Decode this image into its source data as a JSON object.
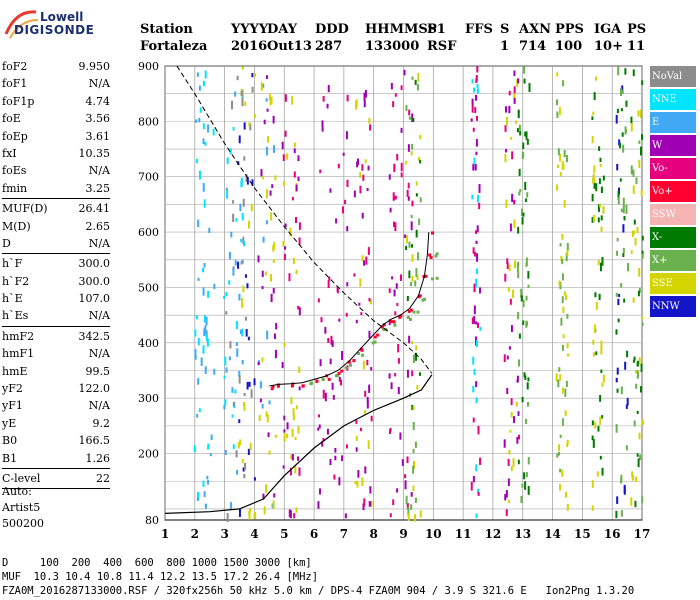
{
  "logo": {
    "line1": "Lowell",
    "line2": "DIGISONDE"
  },
  "header": {
    "row1": [
      "Station",
      "YYYY",
      "DAY",
      "DDD",
      "HHMMSS",
      "P1",
      "FFS",
      "S",
      "AXN",
      "PPS",
      "IGA",
      "PS"
    ],
    "row2": [
      "Fortaleza",
      "2016",
      "Out13",
      "287",
      "133000",
      "RSF",
      "",
      "1",
      "714",
      "100",
      "10+",
      "11"
    ]
  },
  "params": [
    {
      "label": "foF2",
      "value": "9.950"
    },
    {
      "label": "foF1",
      "value": "N/A"
    },
    {
      "label": "foF1p",
      "value": "4.74"
    },
    {
      "label": "foE",
      "value": "3.56"
    },
    {
      "label": "foEp",
      "value": "3.61"
    },
    {
      "label": "fxI",
      "value": "10.35"
    },
    {
      "label": "foEs",
      "value": "N/A"
    },
    {
      "label": "fmin",
      "value": "3.25"
    },
    {
      "sep": true
    },
    {
      "label": "MUF(D)",
      "value": "26.41"
    },
    {
      "label": "M(D)",
      "value": "2.65"
    },
    {
      "label": "D",
      "value": "N/A"
    },
    {
      "sep": true
    },
    {
      "label": "h`F",
      "value": "300.0"
    },
    {
      "label": "h`F2",
      "value": "300.0"
    },
    {
      "label": "h`E",
      "value": "107.0"
    },
    {
      "label": "h`Es",
      "value": "N/A"
    },
    {
      "sep": true
    },
    {
      "label": "hmF2",
      "value": "342.5"
    },
    {
      "label": "hmF1",
      "value": "N/A"
    },
    {
      "label": "hmE",
      "value": "99.5"
    },
    {
      "label": "yF2",
      "value": "122.0"
    },
    {
      "label": "yF1",
      "value": "N/A"
    },
    {
      "label": "yE",
      "value": "9.2"
    },
    {
      "label": "B0",
      "value": "166.5"
    },
    {
      "label": "B1",
      "value": "1.26"
    },
    {
      "sep": true
    },
    {
      "label": "C-level",
      "value": "22"
    },
    {
      "sep": true
    }
  ],
  "auto": {
    "line1": "Auto:",
    "line2": "Artist5",
    "line3": "500200"
  },
  "legend": [
    {
      "label": "NoVal",
      "color": "#8c8c8c"
    },
    {
      "label": "NNE",
      "color": "#00e5ff"
    },
    {
      "label": "E",
      "color": "#3fa9f5"
    },
    {
      "label": "W",
      "color": "#a000b4"
    },
    {
      "label": "Vo-",
      "color": "#e6007e"
    },
    {
      "label": "Vo+",
      "color": "#ff0030"
    },
    {
      "label": "SSW",
      "color": "#f5b4b4"
    },
    {
      "label": "X-",
      "color": "#007a00"
    },
    {
      "label": "X+",
      "color": "#6ab04c"
    },
    {
      "label": "SSE",
      "color": "#d4d400"
    },
    {
      "label": "NNW",
      "color": "#1414c8"
    }
  ],
  "chart_data": {
    "type": "scatter",
    "x_ticks": [
      "1",
      "2",
      "3",
      "4",
      "5",
      "6",
      "7",
      "8",
      "9",
      "10",
      "11",
      "12",
      "13",
      "14",
      "15",
      "16",
      "17"
    ],
    "y_ticks": [
      "80",
      "200",
      "300",
      "400",
      "500",
      "600",
      "700",
      "800",
      "900"
    ],
    "xlim": [
      1,
      17
    ],
    "ylim": [
      80,
      900
    ],
    "grid": true,
    "legend_position": "right",
    "trace_o": [
      [
        4.5,
        322
      ],
      [
        4.8,
        325
      ],
      [
        5.2,
        326
      ],
      [
        5.6,
        328
      ],
      [
        6.0,
        334
      ],
      [
        6.4,
        340
      ],
      [
        6.8,
        350
      ],
      [
        7.2,
        368
      ],
      [
        7.6,
        392
      ],
      [
        8.0,
        415
      ],
      [
        8.3,
        432
      ],
      [
        8.6,
        443
      ],
      [
        8.9,
        450
      ],
      [
        9.2,
        462
      ],
      [
        9.5,
        485
      ],
      [
        9.7,
        520
      ],
      [
        9.8,
        560
      ],
      [
        9.85,
        600
      ]
    ],
    "trace_x": [
      [
        5.9,
        330
      ],
      [
        6.3,
        336
      ],
      [
        6.7,
        345
      ],
      [
        7.1,
        360
      ],
      [
        7.5,
        380
      ],
      [
        7.9,
        405
      ],
      [
        8.3,
        425
      ],
      [
        8.7,
        438
      ],
      [
        9.1,
        448
      ],
      [
        9.4,
        458
      ],
      [
        9.7,
        478
      ],
      [
        10.0,
        520
      ],
      [
        10.1,
        560
      ]
    ],
    "profile_dashed": [
      [
        1.4,
        900
      ],
      [
        2.0,
        850
      ],
      [
        3.0,
        760
      ],
      [
        4.0,
        680
      ],
      [
        5.0,
        610
      ],
      [
        6.0,
        545
      ],
      [
        7.0,
        490
      ],
      [
        8.0,
        440
      ],
      [
        9.0,
        400
      ],
      [
        9.6,
        370
      ],
      [
        9.95,
        345
      ]
    ],
    "profile_solid": [
      [
        1.0,
        92
      ],
      [
        2.5,
        95
      ],
      [
        3.5,
        100
      ],
      [
        4.3,
        118
      ],
      [
        5.0,
        160
      ],
      [
        6.0,
        210
      ],
      [
        7.0,
        250
      ],
      [
        8.0,
        278
      ],
      [
        9.0,
        300
      ],
      [
        9.6,
        315
      ],
      [
        9.95,
        342
      ]
    ]
  },
  "footer": {
    "row1": "D     100  200  400  600  800 1000 1500 3000 [km]",
    "row2": "MUF  10.3 10.4 10.8 11.4 12.2 13.5 17.2 26.4 [MHz]",
    "row3": "FZA0M_2016287133000.RSF / 320fx256h 50 kHz 5.0 km / DPS-4 FZA0M 904 / 3.9 S 321.6 E   Ion2Png 1.3.20"
  }
}
